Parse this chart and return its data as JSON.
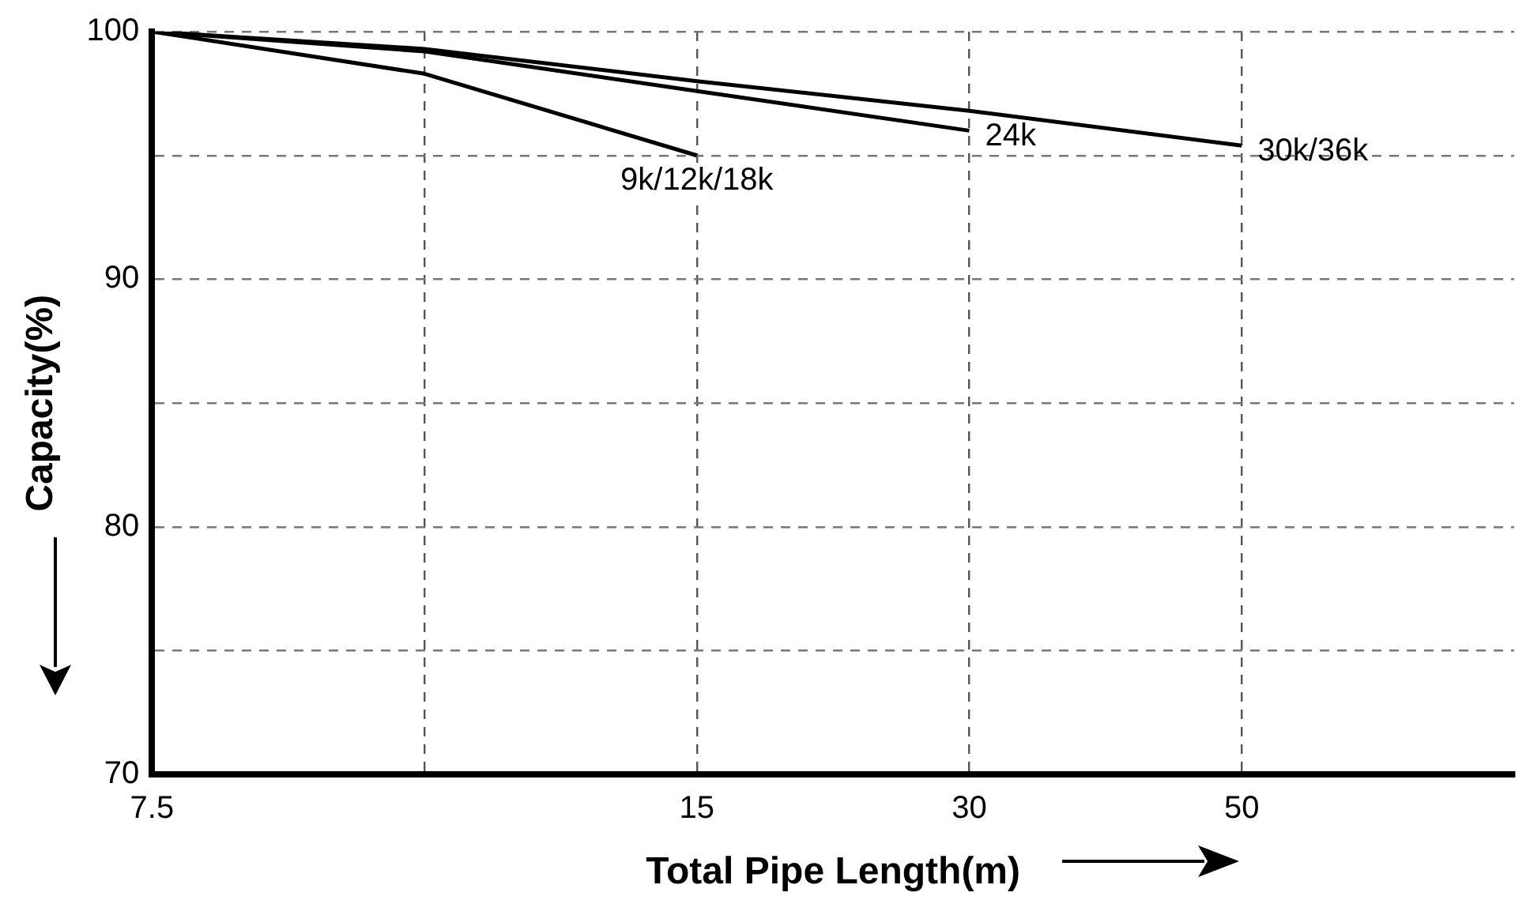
{
  "chart_data": {
    "type": "line",
    "xlabel": "Total Pipe Length(m)",
    "ylabel": "Capacity(%)",
    "categories": [
      "7.5",
      null,
      "15",
      "30",
      "50",
      null
    ],
    "series": [
      {
        "name": "9k/12k/18k",
        "color": "#000000",
        "values": [
          100,
          98.3,
          95,
          null,
          null,
          null
        ]
      },
      {
        "name": "24k",
        "color": "#000000",
        "values": [
          100,
          99.2,
          97.6,
          96.0,
          null,
          null
        ]
      },
      {
        "name": "30k/36k",
        "color": "#000000",
        "values": [
          100,
          99.3,
          98.0,
          96.8,
          95.4,
          null
        ]
      }
    ],
    "ylim": [
      70,
      100
    ],
    "yticks": [
      70,
      {
        "value": 75,
        "label": null
      },
      80,
      {
        "value": 85,
        "label": null
      },
      90,
      {
        "value": 95,
        "label": null
      },
      100
    ],
    "grid": true,
    "legend": false,
    "marker": "none",
    "line_style": "solid"
  }
}
